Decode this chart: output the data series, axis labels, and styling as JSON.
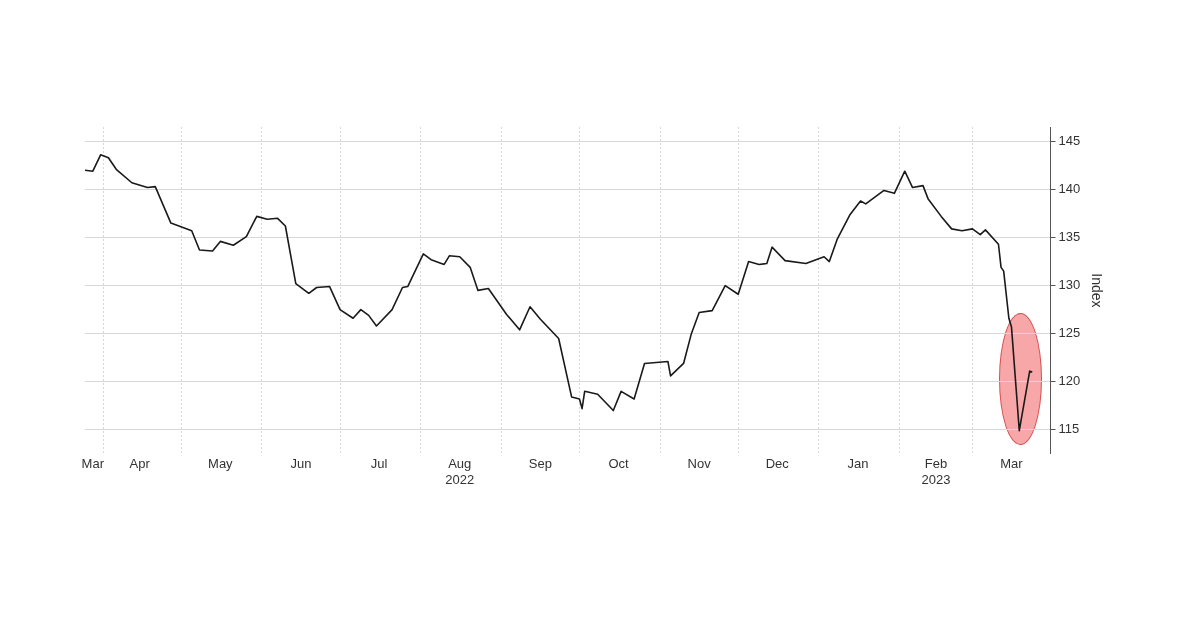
{
  "chart_data": {
    "type": "line",
    "ylabel": "Index",
    "xlim": [
      "2022-03-25",
      "2023-03-31"
    ],
    "ylim": [
      112.5,
      146.5
    ],
    "yticks": [
      115,
      120,
      125,
      130,
      135,
      140,
      145
    ],
    "xticks": [
      {
        "value": "2022-03-28",
        "label": "Mar"
      },
      {
        "value": "2022-04-01",
        "label": null
      },
      {
        "value": "2022-04-15",
        "label": "Apr"
      },
      {
        "value": "2022-05-01",
        "label": null
      },
      {
        "value": "2022-05-16",
        "label": "May"
      },
      {
        "value": "2022-06-01",
        "label": null
      },
      {
        "value": "2022-06-16",
        "label": "Jun"
      },
      {
        "value": "2022-07-01",
        "label": null
      },
      {
        "value": "2022-07-16",
        "label": "Jul"
      },
      {
        "value": "2022-08-01",
        "label": null
      },
      {
        "value": "2022-08-16",
        "label": "Aug\n2022"
      },
      {
        "value": "2022-09-01",
        "label": null
      },
      {
        "value": "2022-09-16",
        "label": "Sep"
      },
      {
        "value": "2022-10-01",
        "label": null
      },
      {
        "value": "2022-10-16",
        "label": "Oct"
      },
      {
        "value": "2022-11-01",
        "label": null
      },
      {
        "value": "2022-11-16",
        "label": "Nov"
      },
      {
        "value": "2022-12-01",
        "label": null
      },
      {
        "value": "2022-12-16",
        "label": "Dec"
      },
      {
        "value": "2023-01-01",
        "label": null
      },
      {
        "value": "2023-01-16",
        "label": "Jan"
      },
      {
        "value": "2023-02-01",
        "label": null
      },
      {
        "value": "2023-02-15",
        "label": "Feb\n2023"
      },
      {
        "value": "2023-03-01",
        "label": null
      },
      {
        "value": "2023-03-16",
        "label": "Mar"
      }
    ],
    "grid": true,
    "legend": false,
    "marker": "none",
    "line_style": "solid",
    "series": [
      {
        "color": "#1a1a1a",
        "x": [
          "2022-03-25",
          "2022-03-28",
          "2022-03-31",
          "2022-04-03",
          "2022-04-06",
          "2022-04-12",
          "2022-04-18",
          "2022-04-21",
          "2022-04-27",
          "2022-05-05",
          "2022-05-08",
          "2022-05-13",
          "2022-05-16",
          "2022-05-21",
          "2022-05-26",
          "2022-05-30",
          "2022-06-03",
          "2022-06-07",
          "2022-06-10",
          "2022-06-14",
          "2022-06-19",
          "2022-06-22",
          "2022-06-27",
          "2022-07-01",
          "2022-07-06",
          "2022-07-09",
          "2022-07-12",
          "2022-07-15",
          "2022-07-21",
          "2022-07-25",
          "2022-07-27",
          "2022-08-02",
          "2022-08-05",
          "2022-08-10",
          "2022-08-12",
          "2022-08-16",
          "2022-08-20",
          "2022-08-23",
          "2022-08-27",
          "2022-09-03",
          "2022-09-08",
          "2022-09-12",
          "2022-09-16",
          "2022-09-23",
          "2022-09-28",
          "2022-10-01",
          "2022-10-02",
          "2022-10-03",
          "2022-10-08",
          "2022-10-14",
          "2022-10-17",
          "2022-10-22",
          "2022-10-26",
          "2022-11-04",
          "2022-11-05",
          "2022-11-10",
          "2022-11-13",
          "2022-11-16",
          "2022-11-21",
          "2022-11-26",
          "2022-12-01",
          "2022-12-05",
          "2022-12-09",
          "2022-12-12",
          "2022-12-14",
          "2022-12-19",
          "2022-12-27",
          "2023-01-03",
          "2023-01-05",
          "2023-01-08",
          "2023-01-13",
          "2023-01-17",
          "2023-01-19",
          "2023-01-26",
          "2023-01-30",
          "2023-02-03",
          "2023-02-06",
          "2023-02-10",
          "2023-02-12",
          "2023-02-17",
          "2023-02-21",
          "2023-02-25",
          "2023-03-01",
          "2023-03-04",
          "2023-03-06",
          "2023-03-11",
          "2023-03-12",
          "2023-03-13",
          "2023-03-15",
          "2023-03-16",
          "2023-03-19",
          "2023-03-23",
          "2023-03-24"
        ],
        "values": [
          142.0,
          141.9,
          143.6,
          143.3,
          142.1,
          140.7,
          140.2,
          140.3,
          136.5,
          135.7,
          133.7,
          133.6,
          134.6,
          134.2,
          135.1,
          137.2,
          136.9,
          137.0,
          136.2,
          130.2,
          129.2,
          129.8,
          129.9,
          127.5,
          126.6,
          127.5,
          126.9,
          125.8,
          127.5,
          129.8,
          129.9,
          133.3,
          132.7,
          132.2,
          133.1,
          133.0,
          131.9,
          129.5,
          129.7,
          127.0,
          125.4,
          127.8,
          126.5,
          124.5,
          118.4,
          118.2,
          117.2,
          119.0,
          118.7,
          117.0,
          119.0,
          118.2,
          121.9,
          122.1,
          120.6,
          121.9,
          125.0,
          127.2,
          127.4,
          130.0,
          129.1,
          132.5,
          132.2,
          132.3,
          134.0,
          132.6,
          132.3,
          133.0,
          132.5,
          134.8,
          137.4,
          138.8,
          138.5,
          139.9,
          139.6,
          141.9,
          140.2,
          140.4,
          139.0,
          137.2,
          135.9,
          135.7,
          135.9,
          135.3,
          135.8,
          134.3,
          131.9,
          131.5,
          126.6,
          125.7,
          114.9,
          121.1,
          121.0
        ]
      }
    ]
  }
}
